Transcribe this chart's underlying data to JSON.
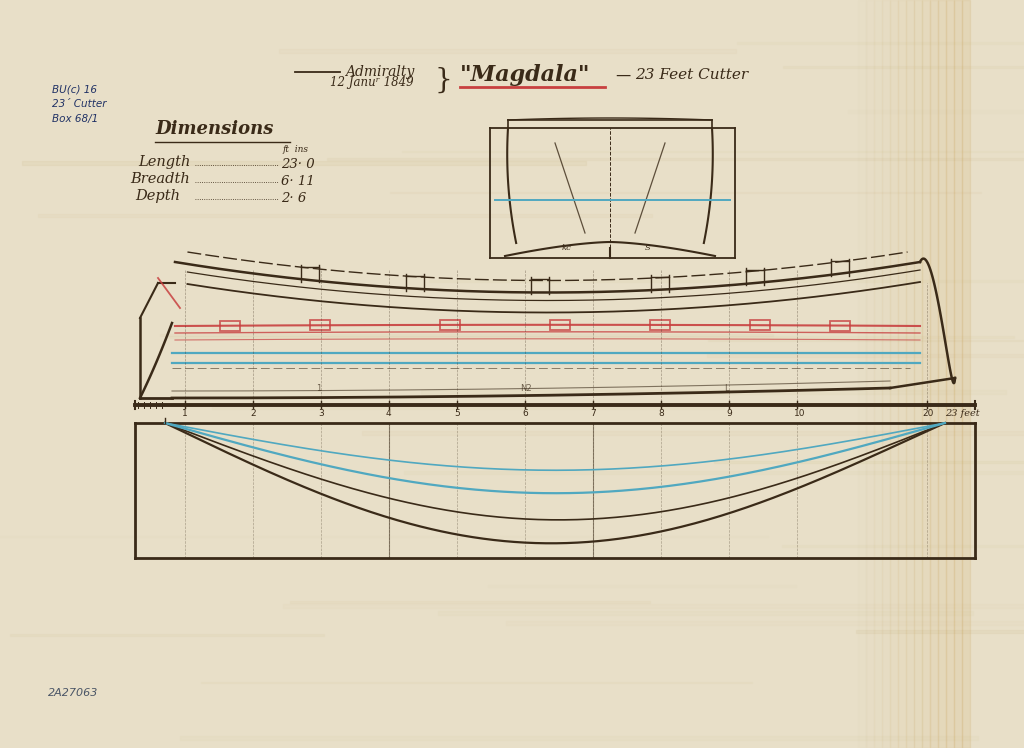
{
  "bg_color": "#e8dfc8",
  "paper_light": "#ede4cc",
  "dark": "#3a2a18",
  "red": "#c84040",
  "blue": "#50a8c0",
  "ref1": "BU(c) 16",
  "ref2": "23´ Cutter",
  "ref3": "Box 68/1",
  "bottom_label": "2A27063",
  "title_adm": "Admiralty",
  "title_date": "12 Januʳ 1849",
  "title_ship": "\"Magdala\"",
  "title_sub": "23 Feet Cutter",
  "dim_title": "Dimensions",
  "dim_ft": "ft  ins",
  "dim_length": "Length",
  "dim_lval": "23· 0",
  "dim_breadth": "Breadth",
  "dim_bval": "6· 11",
  "dim_depth": "Depth",
  "dim_dval": "2· 6"
}
